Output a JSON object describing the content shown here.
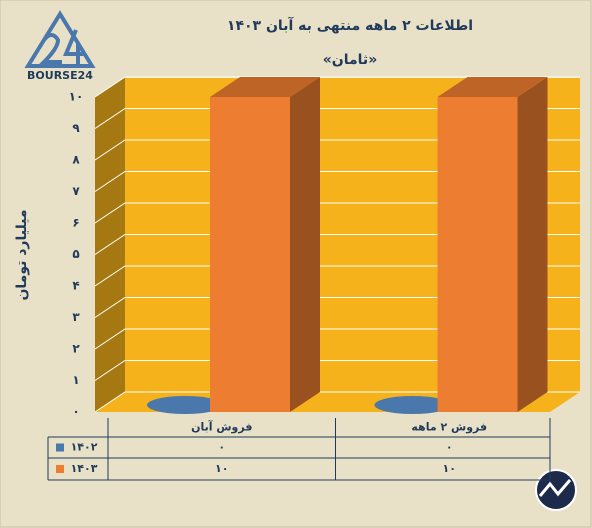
{
  "logo_text": "BOURSE24",
  "chart_data": {
    "type": "bar3d",
    "title": "اطلاعات ۲ ماهه منتهی به آبان ۱۴۰۳",
    "subtitle": "«ثامان»",
    "y_label": "میلیارد تومان",
    "categories": [
      "فروش آبان",
      "فروش ۲ ماهه"
    ],
    "series": [
      {
        "name": "۱۴۰۲",
        "color": "#4a78ad",
        "values": [
          0,
          0
        ],
        "value_labels": [
          "۰",
          "۰"
        ]
      },
      {
        "name": "۱۴۰۳",
        "color": "#ed7d31",
        "values": [
          10,
          10
        ],
        "value_labels": [
          "۱۰",
          "۱۰"
        ]
      }
    ],
    "ylim": [
      0,
      10
    ],
    "yticks": [
      {
        "value": 0,
        "label": "۰"
      },
      {
        "value": 1,
        "label": "۱"
      },
      {
        "value": 2,
        "label": "۲"
      },
      {
        "value": 3,
        "label": "۳"
      },
      {
        "value": 4,
        "label": "۴"
      },
      {
        "value": 5,
        "label": "۵"
      },
      {
        "value": 6,
        "label": "۶"
      },
      {
        "value": 7,
        "label": "۷"
      },
      {
        "value": 8,
        "label": "۸"
      },
      {
        "value": 9,
        "label": "۹"
      },
      {
        "value": 10,
        "label": "۱۰"
      }
    ],
    "grid": true
  }
}
